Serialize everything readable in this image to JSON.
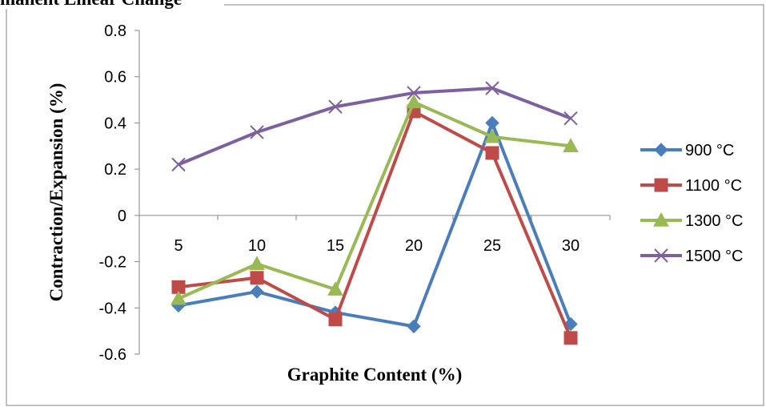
{
  "chart_data": {
    "type": "line",
    "title": "manent Linear Change",
    "xlabel": "Graphite Content (%)",
    "ylabel": "Contraction/Expansion  (%)",
    "categories": [
      "5",
      "10",
      "15",
      "20",
      "25",
      "30"
    ],
    "ylim": [
      -0.6,
      0.8
    ],
    "yticks": [
      "0.8",
      "0.6",
      "0.4",
      "0.2",
      "0",
      "-0.2",
      "-0.4",
      "-0.6"
    ],
    "grid": false,
    "legend_position": "right",
    "series": [
      {
        "name": "900 °C",
        "color": "#4a7ebb",
        "marker": "diamond",
        "values": [
          -0.39,
          -0.33,
          -0.42,
          -0.48,
          0.4,
          -0.47
        ]
      },
      {
        "name": "1100 °C",
        "color": "#be4b48",
        "marker": "square",
        "values": [
          -0.31,
          -0.27,
          -0.45,
          0.45,
          0.27,
          -0.53
        ]
      },
      {
        "name": "1300 °C",
        "color": "#98b954",
        "marker": "triangle",
        "values": [
          -0.36,
          -0.21,
          -0.32,
          0.49,
          0.34,
          0.3
        ]
      },
      {
        "name": "1500 °C",
        "color": "#7d60a0",
        "marker": "x",
        "values": [
          0.22,
          0.36,
          0.47,
          0.53,
          0.55,
          0.42
        ]
      }
    ]
  }
}
